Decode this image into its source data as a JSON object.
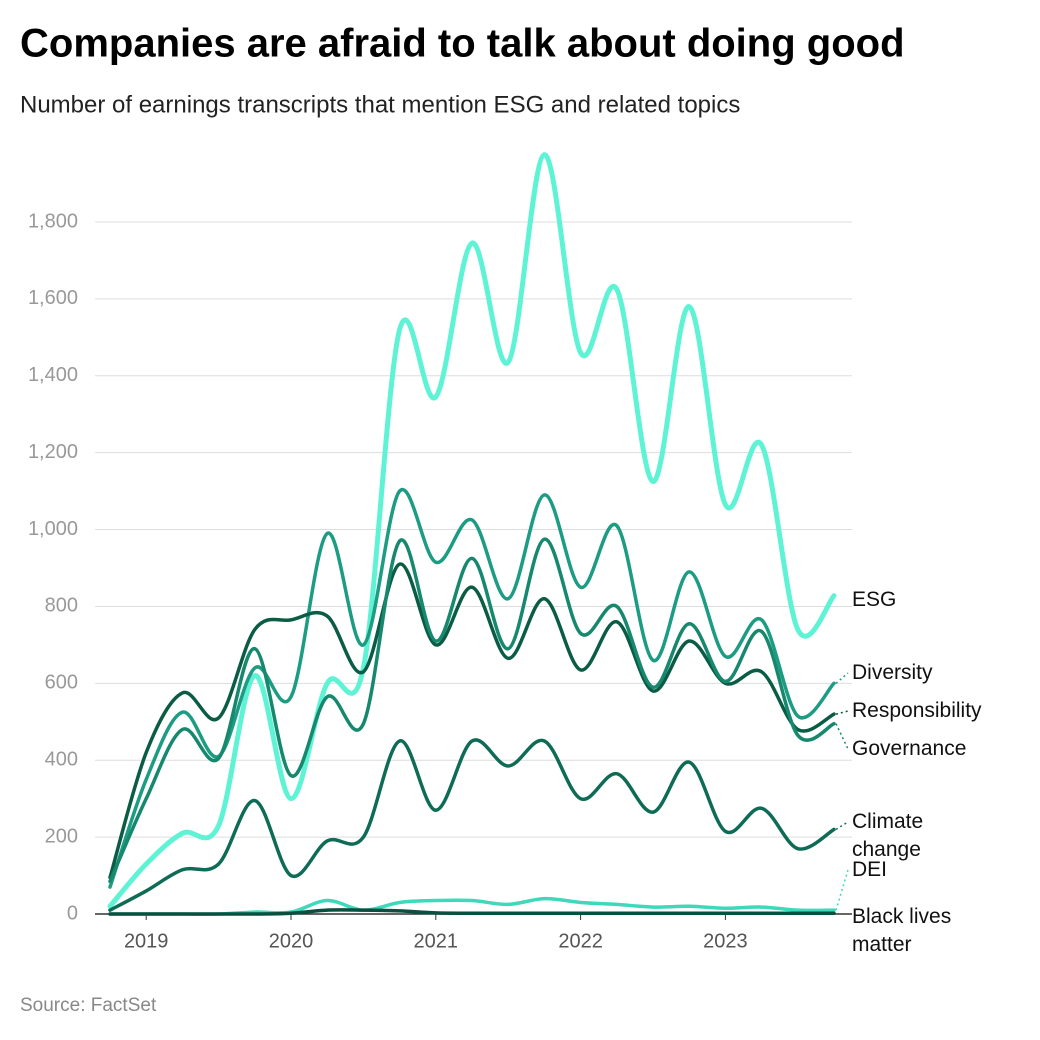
{
  "chart_data": {
    "type": "line",
    "title": "Companies are afraid to talk about doing good",
    "subtitle": "Number of earnings transcripts that mention ESG and related topics",
    "source": "Source: FactSet",
    "x": [
      2018.75,
      2019,
      2019.25,
      2019.5,
      2019.75,
      2020,
      2020.25,
      2020.5,
      2020.75,
      2021,
      2021.25,
      2021.5,
      2021.75,
      2022,
      2022.25,
      2022.5,
      2022.75,
      2023,
      2023.25,
      2023.5,
      2023.75
    ],
    "xlim": [
      2018.75,
      2023.75
    ],
    "xticks": [
      2019,
      2020,
      2021,
      2022,
      2023
    ],
    "ylim": [
      0,
      1800
    ],
    "yticks": [
      0,
      200,
      400,
      600,
      800,
      {
        "value": 1000,
        "label": "1,000"
      },
      {
        "value": 1200,
        "label": "1,200"
      },
      {
        "value": 1400,
        "label": "1,400"
      },
      {
        "value": 1600,
        "label": "1,600"
      },
      {
        "value": 1800,
        "label": "1,800"
      }
    ],
    "grid": true,
    "series": [
      {
        "name": "ESG",
        "color": "#5ff3d6",
        "values": [
          20,
          130,
          210,
          230,
          620,
          300,
          600,
          640,
          1520,
          1345,
          1745,
          1435,
          1975,
          1460,
          1625,
          1125,
          1580,
          1065,
          1220,
          740,
          828
        ]
      },
      {
        "name": "Diversity",
        "color": "#1c9c82",
        "values": [
          70,
          350,
          525,
          410,
          640,
          565,
          990,
          700,
          1100,
          915,
          1025,
          820,
          1090,
          850,
          1010,
          660,
          890,
          670,
          765,
          515,
          600
        ]
      },
      {
        "name": "Responsibility",
        "color": "#0a5c45",
        "values": [
          95,
          420,
          575,
          510,
          740,
          765,
          775,
          630,
          910,
          700,
          850,
          665,
          820,
          635,
          760,
          580,
          710,
          600,
          630,
          480,
          520
        ]
      },
      {
        "name": "Governance",
        "color": "#16886e",
        "values": [
          85,
          300,
          480,
          405,
          690,
          360,
          565,
          495,
          970,
          710,
          925,
          690,
          975,
          730,
          800,
          590,
          755,
          605,
          735,
          465,
          495
        ]
      },
      {
        "name": "Climate change",
        "color": "#0e6b55",
        "values": [
          10,
          60,
          115,
          130,
          295,
          100,
          190,
          200,
          450,
          270,
          450,
          385,
          450,
          300,
          365,
          265,
          395,
          215,
          275,
          170,
          220
        ]
      },
      {
        "name": "DEI",
        "color": "#3ed8ba",
        "values": [
          0,
          0,
          0,
          0,
          5,
          5,
          35,
          10,
          30,
          35,
          35,
          25,
          40,
          30,
          25,
          18,
          20,
          15,
          18,
          10,
          10
        ]
      },
      {
        "name": "Black lives matter",
        "color": "#0a5040",
        "values": [
          0,
          0,
          0,
          0,
          0,
          2,
          10,
          10,
          8,
          3,
          2,
          2,
          2,
          2,
          2,
          2,
          2,
          2,
          2,
          2,
          2
        ]
      }
    ]
  }
}
